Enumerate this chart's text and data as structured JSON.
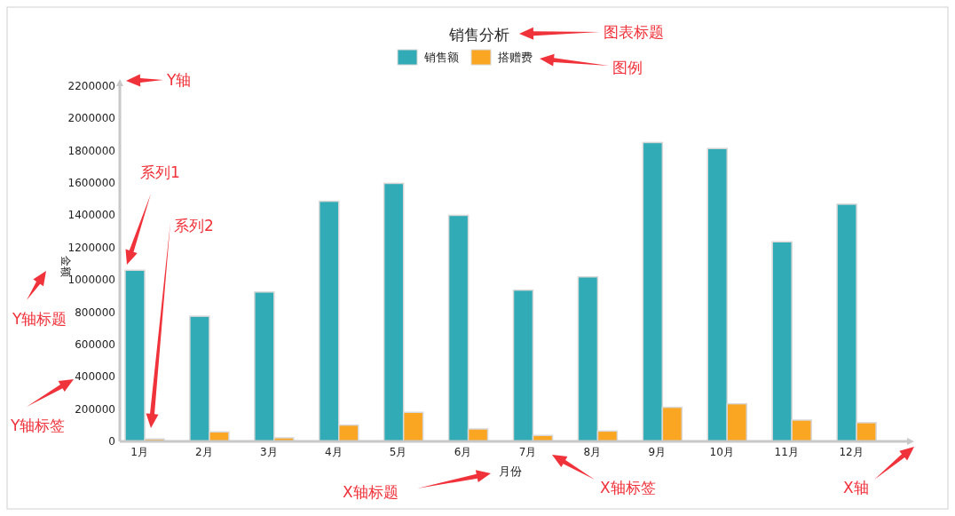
{
  "chart_data": {
    "type": "bar",
    "title": "销售分析",
    "xlabel": "月份",
    "ylabel": "金额",
    "categories": [
      "1月",
      "2月",
      "3月",
      "4月",
      "5月",
      "6月",
      "7月",
      "8月",
      "9月",
      "10月",
      "11月",
      "12月"
    ],
    "series": [
      {
        "name": "销售额",
        "color": "#31acb6",
        "values": [
          1060000,
          775000,
          925000,
          1487000,
          1598000,
          1400000,
          937000,
          1019000,
          1851000,
          1814000,
          1236000,
          1469000
        ]
      },
      {
        "name": "搭赠费",
        "color": "#fba623",
        "values": [
          15000,
          59000,
          22000,
          101000,
          180000,
          77000,
          37000,
          64000,
          211000,
          233000,
          132000,
          116000
        ]
      }
    ],
    "ylim": [
      0,
      2200000
    ],
    "yticks": [
      0,
      200000,
      400000,
      600000,
      800000,
      1000000,
      1200000,
      1400000,
      1600000,
      1800000,
      2000000,
      2200000
    ],
    "grid": false,
    "legend": "top",
    "annotations": [
      "图表标题",
      "图例",
      "Y轴",
      "系列1",
      "系列2",
      "Y轴标题",
      "Y轴标签",
      "X轴标题",
      "X轴标签",
      "X轴"
    ]
  }
}
